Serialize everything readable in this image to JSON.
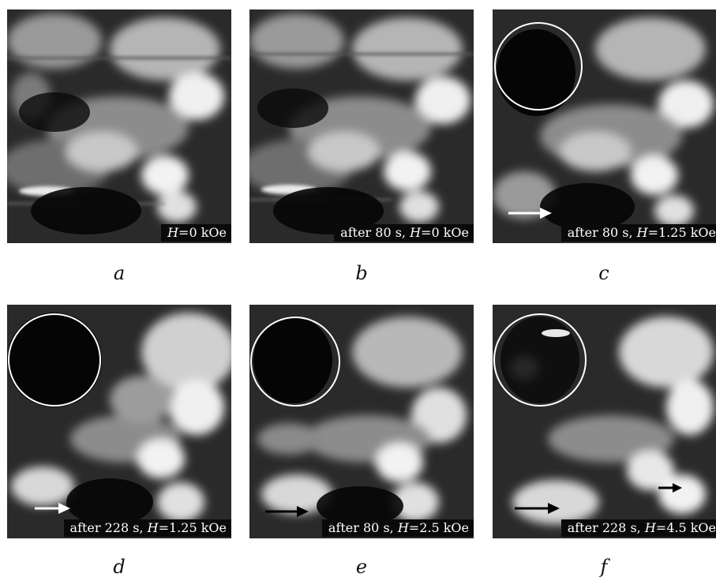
{
  "panels": [
    {
      "letter": "a",
      "caption_prefix": "",
      "h_label": "H",
      "h_value": "=0 kOe",
      "circle": false,
      "arrows": []
    },
    {
      "letter": "b",
      "caption_prefix": "after 80 s, ",
      "h_label": "H",
      "h_value": "=0 kOe",
      "circle": false,
      "arrows": []
    },
    {
      "letter": "c",
      "caption_prefix": "after 80 s, ",
      "h_label": "H",
      "h_value": "=1.25 kOe",
      "circle": true,
      "arrows": [
        "white"
      ]
    },
    {
      "letter": "d",
      "caption_prefix": "after 228 s, ",
      "h_label": "H",
      "h_value": "=1.25 kOe",
      "circle": true,
      "arrows": [
        "white"
      ]
    },
    {
      "letter": "e",
      "caption_prefix": "after 80 s, ",
      "h_label": "H",
      "h_value": "=2.5 kOe",
      "circle": true,
      "arrows": [
        "black"
      ]
    },
    {
      "letter": "f",
      "caption_prefix": "after 228 s, ",
      "h_label": "H",
      "h_value": "=4.5 kOe",
      "circle": true,
      "arrows": [
        "black",
        "black"
      ]
    }
  ],
  "colors": {
    "background": "#1a1a1a",
    "grain": "#e8e8e8",
    "circle": "#ffffff"
  }
}
